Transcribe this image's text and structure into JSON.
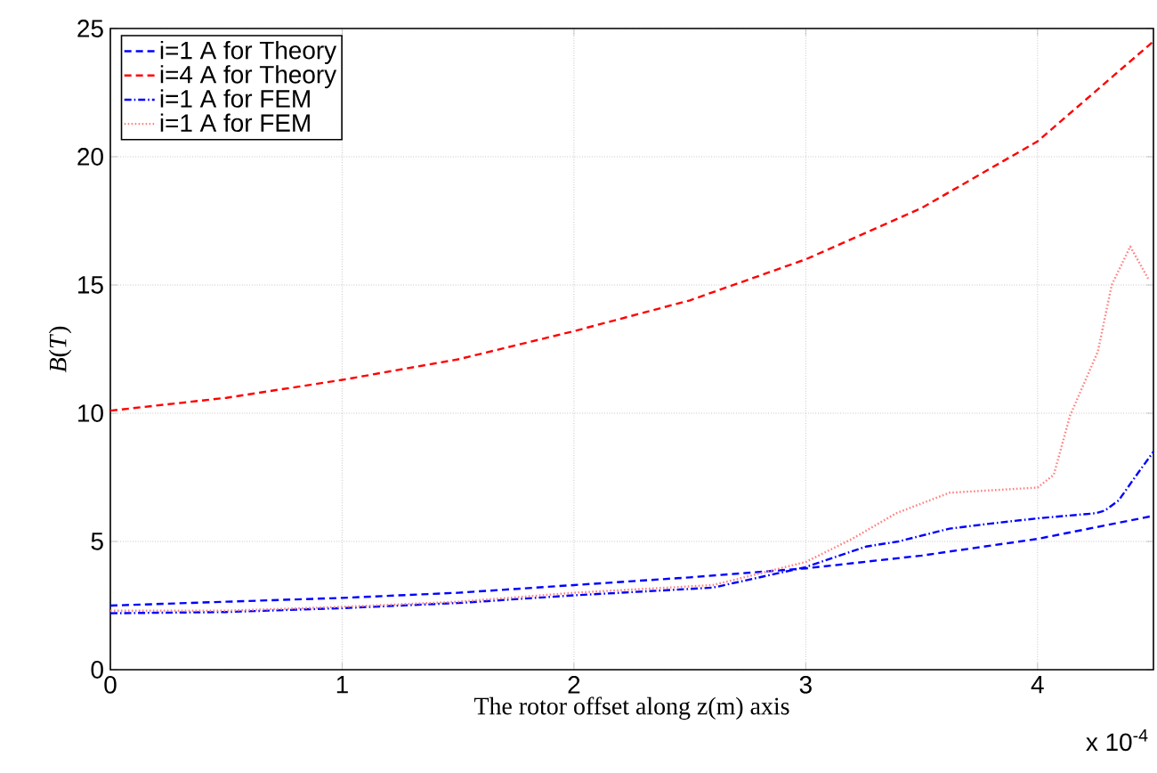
{
  "chart_data": {
    "type": "line",
    "xlabel": "The rotor offset along z(m) axis",
    "ylabel": "*B*(*T*)",
    "xlim": [
      0,
      4.5
    ],
    "ylim": [
      0,
      25
    ],
    "xticks": [
      0,
      1,
      2,
      3,
      4
    ],
    "yticks": [
      0,
      5,
      10,
      15,
      20,
      25
    ],
    "grid": true,
    "legend": "top left",
    "marker": "none",
    "annotations": [
      "x 10$^{-4}$"
    ],
    "series": [
      {
        "name": "i=1 A for Theory",
        "color": "#0000ff",
        "line_style": "dashed",
        "x": [
          0,
          0.5,
          1,
          1.5,
          2,
          2.5,
          3,
          3.5,
          4,
          4.5
        ],
        "values": [
          2.5,
          2.65,
          2.8,
          3.0,
          3.3,
          3.6,
          3.95,
          4.45,
          5.1,
          6.0
        ]
      },
      {
        "name": "i=4 A for Theory",
        "color": "#ff0000",
        "line_style": "dashed",
        "x": [
          0,
          0.5,
          1,
          1.5,
          2,
          2.5,
          3,
          3.5,
          4,
          4.5
        ],
        "values": [
          10.1,
          10.6,
          11.3,
          12.1,
          13.2,
          14.4,
          16.0,
          18.0,
          20.6,
          24.5
        ]
      },
      {
        "name": "i=1 A for FEM",
        "color": "#0000ff",
        "line_style": "dashdot",
        "x": [
          0,
          0.5,
          1,
          1.5,
          2,
          2.6,
          3,
          3.26,
          3.4,
          3.62,
          3.8,
          4,
          4.25,
          4.29,
          4.35,
          4.42,
          4.5
        ],
        "values": [
          2.2,
          2.25,
          2.4,
          2.6,
          2.9,
          3.2,
          4.0,
          4.8,
          5.0,
          5.5,
          5.7,
          5.9,
          6.1,
          6.2,
          6.6,
          7.5,
          8.5
        ]
      },
      {
        "name": "i=1 A for FEM",
        "color": "#ff8080",
        "line_style": "dotted",
        "x": [
          0,
          0.5,
          1,
          1.5,
          2,
          2.6,
          3,
          3.2,
          3.39,
          3.62,
          4,
          4.07,
          4.14,
          4.26,
          4.32,
          4.4,
          4.48
        ],
        "values": [
          2.3,
          2.3,
          2.45,
          2.65,
          3.0,
          3.3,
          4.2,
          5.1,
          6.1,
          6.9,
          7.1,
          7.6,
          9.9,
          12.4,
          15.0,
          16.5,
          15.2
        ]
      }
    ]
  }
}
